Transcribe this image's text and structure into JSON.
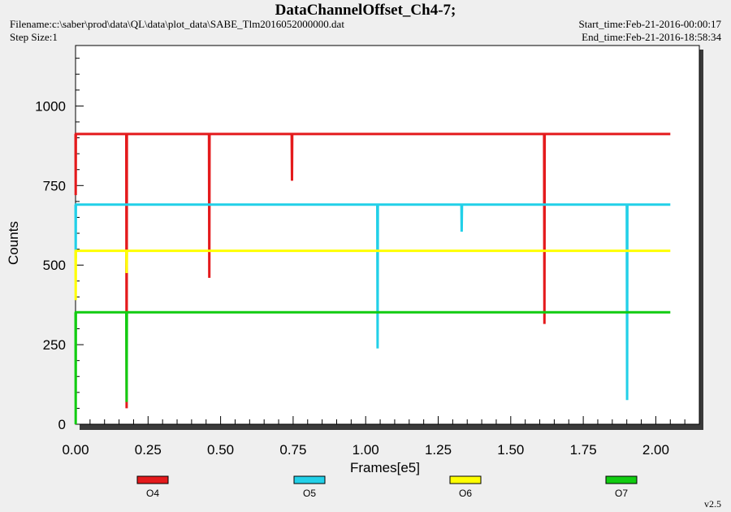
{
  "header": {
    "title": "DataChannelOffset_Ch4-7;",
    "filename": "Filename:c:\\saber\\prod\\data\\QL\\data\\plot_data\\SABE_Tlm2016052000000.dat",
    "step_size": "Step Size:1",
    "start_time": "Start_time:Feb-21-2016-00:00:17",
    "end_time": "End_time:Feb-21-2016-18:58:34"
  },
  "footer": {
    "version": "v2.5"
  },
  "chart_data": {
    "type": "line",
    "title": "DataChannelOffset_Ch4-7;",
    "xlabel": "Frames[e5]",
    "ylabel": "Counts",
    "xlim": [
      0,
      2.15
    ],
    "ylim": [
      0,
      1190
    ],
    "x_ticks": [
      "0.00",
      "0.25",
      "0.50",
      "0.75",
      "1.00",
      "1.25",
      "1.50",
      "1.75",
      "2.00"
    ],
    "y_ticks": [
      "0",
      "250",
      "500",
      "750",
      "1000"
    ],
    "grid": false,
    "legend_position": "bottom",
    "series": [
      {
        "name": "O4",
        "color": "#e41a1c",
        "points": [
          [
            0,
            912
          ],
          [
            0.0005,
            720
          ],
          [
            0.001,
            912
          ],
          [
            0.175,
            912
          ],
          [
            0.176,
            50
          ],
          [
            0.177,
            912
          ],
          [
            0.46,
            912
          ],
          [
            0.461,
            460
          ],
          [
            0.462,
            912
          ],
          [
            0.745,
            912
          ],
          [
            0.746,
            765
          ],
          [
            0.747,
            912
          ],
          [
            1.615,
            912
          ],
          [
            1.616,
            315
          ],
          [
            1.617,
            912
          ],
          [
            2.05,
            912
          ]
        ]
      },
      {
        "name": "O5",
        "color": "#22d0e8",
        "points": [
          [
            0,
            690
          ],
          [
            0.0005,
            520
          ],
          [
            0.001,
            690
          ],
          [
            1.04,
            690
          ],
          [
            1.041,
            238
          ],
          [
            1.042,
            690
          ],
          [
            1.33,
            690
          ],
          [
            1.331,
            605
          ],
          [
            1.332,
            690
          ],
          [
            1.9,
            690
          ],
          [
            1.901,
            76
          ],
          [
            1.902,
            690
          ],
          [
            2.05,
            690
          ]
        ]
      },
      {
        "name": "O6",
        "color": "#ffff00",
        "points": [
          [
            0,
            545
          ],
          [
            0.0005,
            390
          ],
          [
            0.001,
            545
          ],
          [
            0.175,
            545
          ],
          [
            0.176,
            475
          ],
          [
            0.177,
            545
          ],
          [
            2.05,
            545
          ]
        ]
      },
      {
        "name": "O7",
        "color": "#11cc11",
        "points": [
          [
            0,
            352
          ],
          [
            0.0005,
            0
          ],
          [
            0.001,
            352
          ],
          [
            0.175,
            352
          ],
          [
            0.176,
            70
          ],
          [
            0.177,
            352
          ],
          [
            2.05,
            352
          ]
        ]
      }
    ]
  }
}
